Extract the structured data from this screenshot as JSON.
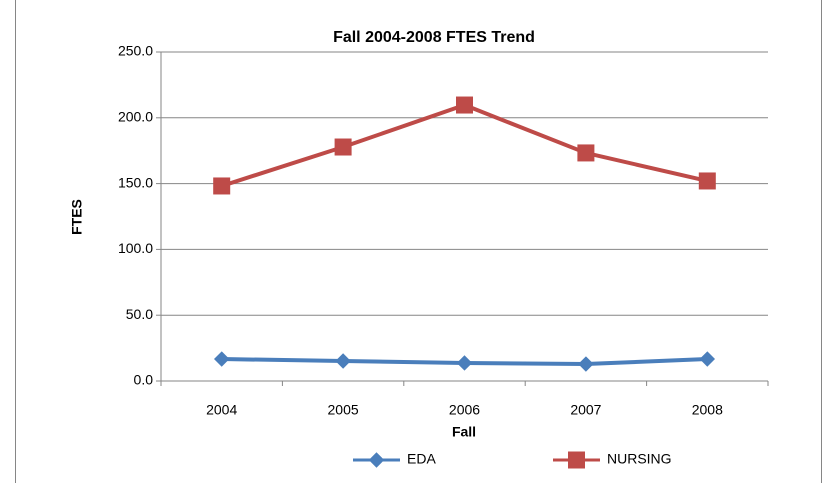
{
  "chart_data": {
    "type": "line",
    "title": "Fall 2004-2008 FTES Trend",
    "x_label": "Fall",
    "y_label": "FTES",
    "categories": [
      "2004",
      "2005",
      "2006",
      "2007",
      "2008"
    ],
    "series": [
      {
        "name": "EDA",
        "color": "#4a7ebb",
        "marker": "diamond",
        "values": [
          16.7,
          15.2,
          13.7,
          12.9,
          16.7
        ]
      },
      {
        "name": "NURSING",
        "color": "#be4b48",
        "marker": "square",
        "values": [
          148.2,
          177.8,
          209.7,
          173.3,
          152.0
        ]
      }
    ],
    "ylim": [
      0,
      250
    ],
    "yticks": [
      {
        "value": 0,
        "label": "0.0"
      },
      {
        "value": 50,
        "label": "50.0"
      },
      {
        "value": 100,
        "label": "100.0"
      },
      {
        "value": 150,
        "label": "150.0"
      },
      {
        "value": 200,
        "label": "200.0"
      },
      {
        "value": 250,
        "label": "250.0"
      }
    ],
    "grid": true,
    "legend": "bottom"
  }
}
